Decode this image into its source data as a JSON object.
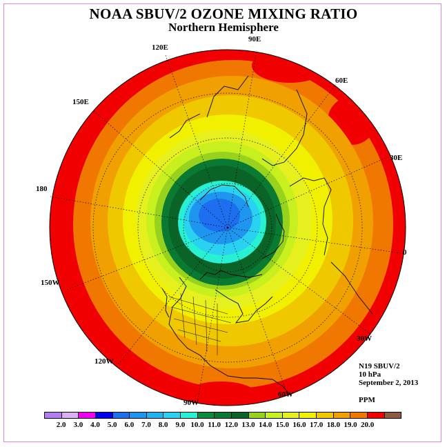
{
  "title": "NOAA SBUV/2 OZONE MIXING RATIO",
  "subtitle": "Northern Hemisphere",
  "longitude_labels": {
    "lon_90e": "90E",
    "lon_60e": "60E",
    "lon_30e": "30E",
    "lon_0": "0",
    "lon_30w": "30W",
    "lon_60w": "60W",
    "lon_90w": "90W",
    "lon_120w": "120W",
    "lon_150w": "150W",
    "lon_180": "180",
    "lon_150e": "150E",
    "lon_120e": "120E"
  },
  "info": {
    "instrument": "N19 SBUV/2",
    "level": "10 hPa",
    "date": "September 2, 2013",
    "units": "PPM"
  },
  "colorbar": {
    "colors": [
      "#b57cf0",
      "#d9b0f0",
      "#f000f0",
      "#0000f0",
      "#1e6ef0",
      "#1e96f0",
      "#1eb4f0",
      "#28d2f0",
      "#28f0d2",
      "#0a8c3c",
      "#0a7a32",
      "#0a6428",
      "#96d21e",
      "#c8f01e",
      "#e6f01e",
      "#f0f000",
      "#f0c800",
      "#f0a000",
      "#f07800",
      "#f00000",
      "#8c5a3c"
    ],
    "labels": [
      "2.0",
      "3.0",
      "4.0",
      "5.0",
      "6.0",
      "7.0",
      "8.0",
      "9.0",
      "10.0",
      "11.0",
      "12.0",
      "13.0",
      "14.0",
      "15.0",
      "16.0",
      "17.0",
      "18.0",
      "19.0",
      "20.0"
    ]
  },
  "map_colors": {
    "red": "#f00000",
    "orange_dark": "#f07800",
    "orange": "#f0a000",
    "gold": "#f0c800",
    "yellow": "#f0f000",
    "yellow_green": "#e6f01e",
    "lime": "#c8f01e",
    "light_green": "#96d21e",
    "dark_green": "#0a6428",
    "mid_green": "#0a7a32",
    "cyan": "#28f0d2",
    "light_blue": "#28d2f0",
    "blue": "#1e96f0",
    "deep_blue": "#1e6ef0"
  }
}
